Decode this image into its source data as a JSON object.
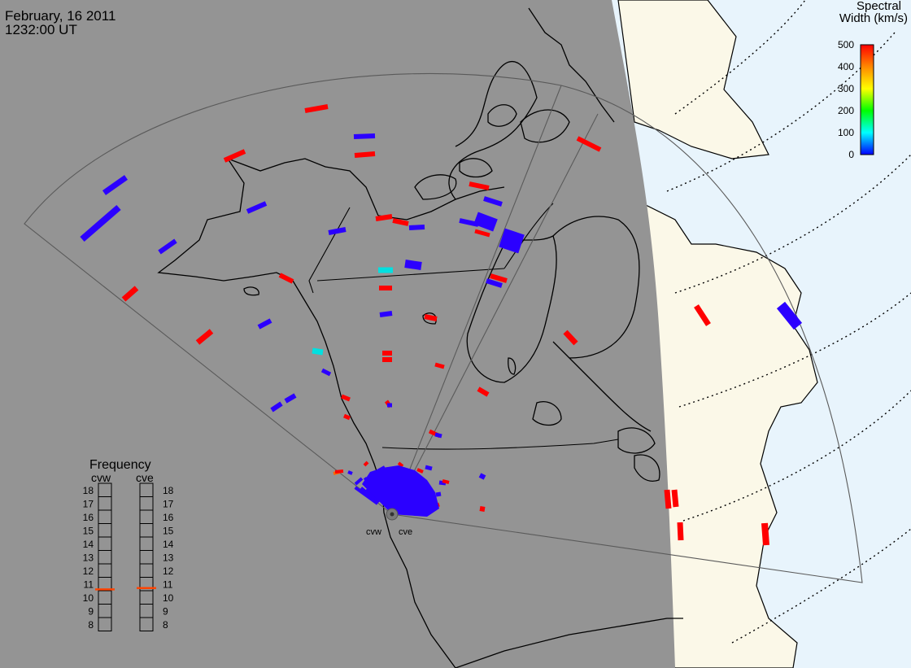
{
  "header": {
    "date": "February, 16 2011",
    "time": "1232:00 UT"
  },
  "colorbar": {
    "title_line1": "Spectral",
    "title_line2": "Width (km/s)",
    "ticks": [
      "500",
      "400",
      "300",
      "200",
      "100",
      "0"
    ],
    "range": [
      0,
      500
    ],
    "stops": [
      "#0000ff",
      "#00ffff",
      "#00ff00",
      "#ffff00",
      "#ff8800",
      "#ff0000"
    ]
  },
  "frequency_panel": {
    "title": "Frequency",
    "left_label": "cvw",
    "right_label": "cve",
    "levels": [
      "18",
      "17",
      "16",
      "15",
      "14",
      "13",
      "12",
      "11",
      "10",
      "9",
      "8"
    ],
    "cvw_marker_mhz": 10.6,
    "cve_marker_mhz": 10.7,
    "marker_color": "#ff4400"
  },
  "radars": {
    "west_label": "cvw",
    "east_label": "cve"
  },
  "colors": {
    "night": "#949494",
    "land_day": "#fbf8e8",
    "ocean_day": "#e8f4fc",
    "low_width": "#2b00ff",
    "high_width": "#ff0000",
    "mid_width": "#00e0e0"
  }
}
